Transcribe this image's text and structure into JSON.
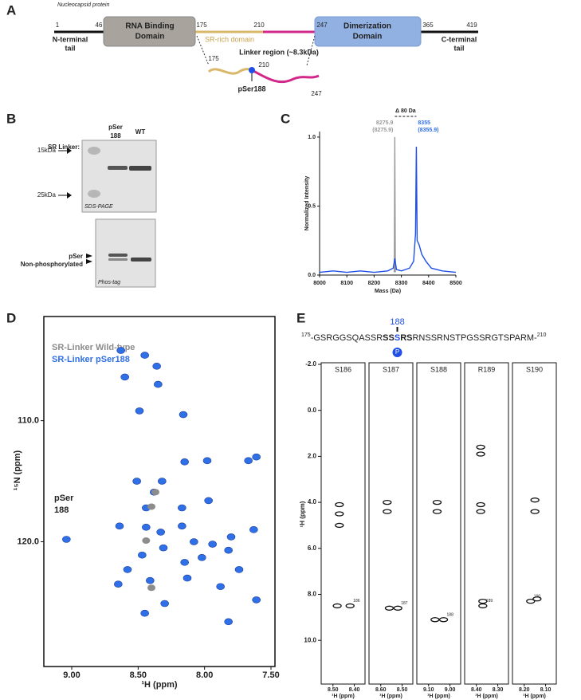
{
  "panel_labels": [
    "A",
    "B",
    "C",
    "D",
    "E"
  ],
  "panel_a": {
    "caption": "Nucleocapsid protein",
    "rna_domain": [
      "RNA Binding",
      "Domain"
    ],
    "dimer_domain": [
      "Dimerization",
      "Domain"
    ],
    "n_tail": [
      "N-terminal",
      "tail"
    ],
    "c_tail": [
      "C-terminal",
      "tail"
    ],
    "sr_domain": "SR-rich domain",
    "linker": "Linker region (~8.3kDa)",
    "residues": [
      1,
      46,
      175,
      210,
      247,
      365,
      419
    ],
    "linker_residues": [
      175,
      210,
      247
    ],
    "site": "pSer188"
  },
  "panel_b": {
    "sr_linker": "SR Linker:",
    "lane_1": [
      "pSer",
      "188"
    ],
    "lane_2": "WT",
    "markers": [
      "15kDa",
      "25kDa"
    ],
    "gel_1": "SDS-PAGE",
    "gel_2": "Phos-tag",
    "band_labels": [
      "pSer",
      "Non-phosphorylated"
    ]
  },
  "panel_e_sequence": {
    "start": 175,
    "before": "-GSRGGSQASSR",
    "bold": "SS",
    "site": "S",
    "bold_after": "RS",
    "after": "RNSSRNSTPGSSRGTSPARM-",
    "end": 210,
    "site_number": 188,
    "phospho": "P"
  },
  "chart_data": [
    {
      "type": "line",
      "xlabel": "Mass (Da)",
      "ylabel": "Normalized Intensity",
      "xlim": [
        8000,
        8500
      ],
      "ylim": [
        0,
        1.04
      ],
      "xticks": [
        8000,
        8100,
        8200,
        8300,
        8400,
        8500
      ],
      "yticks": [
        {
          "value": 0,
          "label": "0.0"
        },
        {
          "value": 0.5,
          "label": "0.5"
        },
        {
          "value": 1,
          "label": "1.0"
        }
      ],
      "series": [
        {
          "color": "#9a9a9a",
          "x": [
            8274,
            8275.9,
            8278
          ],
          "values": [
            0.02,
            1.0,
            0.02
          ]
        },
        {
          "color": "#1f4fe6",
          "x": [
            8000,
            8050,
            8100,
            8150,
            8200,
            8250,
            8270,
            8276,
            8282,
            8300,
            8330,
            8345,
            8352,
            8355,
            8358,
            8365,
            8375,
            8390,
            8410,
            8450,
            8500
          ],
          "values": [
            0.02,
            0.03,
            0.02,
            0.03,
            0.02,
            0.03,
            0.05,
            0.12,
            0.04,
            0.03,
            0.05,
            0.1,
            0.3,
            0.93,
            0.25,
            0.22,
            0.15,
            0.1,
            0.05,
            0.03,
            0.02
          ]
        }
      ],
      "delta": "Δ 80 Da",
      "peak_labels": [
        {
          "mass": 8275.9,
          "theoretical": "(8275.9)",
          "color": "#9a9a9a"
        },
        {
          "mass": 8355,
          "theoretical": "(8355.9)",
          "color": "#2f6fe8"
        }
      ]
    },
    {
      "type": "scatter",
      "xlabel": "¹H (ppm)",
      "ylabel": "¹⁵N (ppm)",
      "xlim": [
        9.21,
        7.47
      ],
      "ylim": [
        101.4,
        130.3
      ],
      "xticks": [
        {
          "value": 9,
          "label": "9.00"
        },
        {
          "value": 8.5,
          "label": "8.50"
        },
        {
          "value": 8,
          "label": "8.00"
        },
        {
          "value": 7.5,
          "label": "7.50"
        }
      ],
      "yticks": [
        {
          "value": 110,
          "label": "110.0"
        },
        {
          "value": 120,
          "label": "120.0"
        }
      ],
      "series": [
        {
          "name": "SR-Linker Wild-type",
          "color": "#8c8c8c",
          "x": [
            8.4,
            8.37,
            8.44,
            8.4
          ],
          "values": [
            117.1,
            115.9,
            119.9,
            123.8
          ]
        },
        {
          "name": "SR-Linker pSer188",
          "color": "#2f6fe8",
          "x": [
            8.63,
            8.45,
            8.36,
            8.6,
            8.35,
            8.49,
            8.16,
            7.98,
            7.67,
            7.61,
            8.15,
            8.51,
            8.32,
            8.38,
            8.17,
            7.97,
            8.44,
            8.33,
            8.64,
            8.44,
            8.17,
            8.08,
            7.94,
            7.8,
            7.63,
            8.47,
            8.31,
            8.15,
            8.02,
            7.82,
            7.74,
            8.58,
            8.41,
            8.65,
            8.13,
            7.88,
            8.45,
            8.3,
            7.82,
            7.61,
            9.04
          ],
          "values": [
            104.2,
            104.6,
            105.5,
            106.4,
            107.0,
            109.2,
            109.5,
            113.3,
            113.3,
            113.0,
            113.4,
            115.0,
            115.0,
            115.9,
            117.2,
            116.6,
            117.2,
            119.2,
            118.7,
            118.8,
            118.7,
            120.0,
            120.2,
            119.6,
            119.0,
            121.1,
            120.5,
            121.7,
            121.3,
            120.7,
            122.3,
            122.3,
            123.2,
            123.5,
            123.0,
            123.7,
            125.9,
            125.1,
            126.6,
            124.8,
            119.8
          ]
        }
      ],
      "annotation": [
        "pSer",
        "188"
      ]
    },
    {
      "type": "strip",
      "ylabel": "¹H (ppm)",
      "ylim": [
        -2,
        11.9
      ],
      "yticks": [
        {
          "value": -2,
          "label": "-2.0"
        },
        {
          "value": 0,
          "label": "0.0"
        },
        {
          "value": 2,
          "label": "2.0"
        },
        {
          "value": 4,
          "label": "4.0"
        },
        {
          "value": 6,
          "label": "6.0"
        },
        {
          "value": 8,
          "label": "8.0"
        },
        {
          "value": 10,
          "label": "10.0"
        }
      ],
      "strips": [
        {
          "title": "S186",
          "xlabel": "¹H (ppm)",
          "xlim": [
            8.555,
            8.35
          ],
          "xticks": [
            {
              "value": 8.5,
              "label": "8.50"
            },
            {
              "value": 8.4,
              "label": "8.40"
            }
          ],
          "x": [
            8.47,
            8.47,
            8.47,
            8.48,
            8.42
          ],
          "values": [
            4.1,
            4.5,
            5.0,
            8.5,
            8.5
          ],
          "peak_label": 186
        },
        {
          "title": "S187",
          "xlabel": "¹H (ppm)",
          "xlim": [
            8.655,
            8.45
          ],
          "xticks": [
            {
              "value": 8.6,
              "label": "8.60"
            },
            {
              "value": 8.5,
              "label": "8.50"
            }
          ],
          "x": [
            8.57,
            8.57,
            8.56,
            8.52
          ],
          "values": [
            4.0,
            4.4,
            8.6,
            8.6
          ],
          "peak_label": 187
        },
        {
          "title": "S188",
          "xlabel": "¹H (ppm)",
          "xlim": [
            9.155,
            8.95
          ],
          "xticks": [
            {
              "value": 9.1,
              "label": "9.10"
            },
            {
              "value": 9,
              "label": "9.00"
            }
          ],
          "x": [
            9.06,
            9.06,
            9.07,
            9.03
          ],
          "values": [
            4.0,
            4.4,
            9.1,
            9.1
          ],
          "peak_label": 188
        },
        {
          "title": "R189",
          "xlabel": "¹H (ppm)",
          "xlim": [
            8.455,
            8.25
          ],
          "xticks": [
            {
              "value": 8.4,
              "label": "8.40"
            },
            {
              "value": 8.3,
              "label": "8.30"
            }
          ],
          "x": [
            8.38,
            8.38,
            8.38,
            8.38,
            8.37,
            8.37
          ],
          "values": [
            1.6,
            1.9,
            4.1,
            4.4,
            8.3,
            8.5
          ],
          "peak_label": 189
        },
        {
          "title": "S190",
          "xlabel": "¹H (ppm)",
          "xlim": [
            8.255,
            8.05
          ],
          "xticks": [
            {
              "value": 8.2,
              "label": "8.20"
            },
            {
              "value": 8.1,
              "label": "8.10"
            }
          ],
          "x": [
            8.15,
            8.15,
            8.14,
            8.17
          ],
          "values": [
            3.9,
            4.4,
            8.2,
            8.3
          ],
          "peak_label": 190
        }
      ]
    }
  ]
}
